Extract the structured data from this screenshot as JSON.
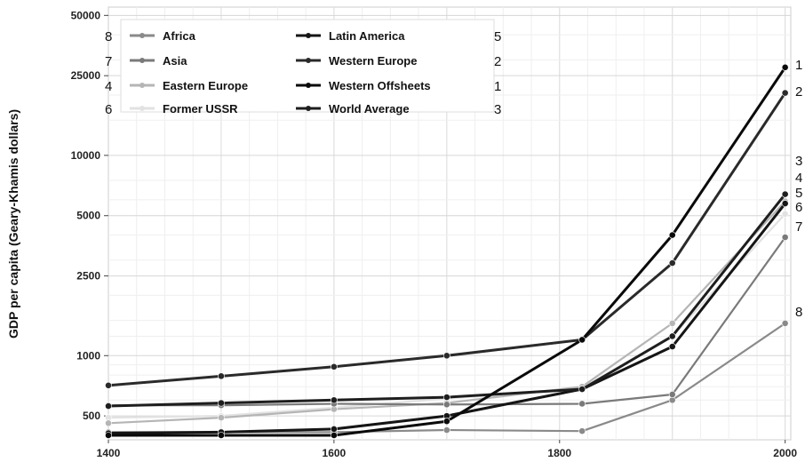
{
  "chart_data": {
    "type": "line",
    "title": "",
    "xlabel": "",
    "ylabel": "GDP per capita (Geary-Khamis dollars)",
    "y_scale": "log",
    "xlim": [
      1400,
      2005
    ],
    "ylim": [
      380,
      55000
    ],
    "x_ticks": [
      "1400",
      "1600",
      "1800",
      "2000"
    ],
    "y_ticks": [
      "500",
      "1000",
      "2500",
      "5000",
      "10000",
      "25000",
      "50000"
    ],
    "grid": true,
    "legend_position": "top-left",
    "series": [
      {
        "name": "Africa",
        "rank": "8",
        "color": "#8a8a8a",
        "x": [
          1400,
          1500,
          1600,
          1700,
          1820,
          1900,
          2000
        ],
        "y": [
          415,
          415,
          415,
          425,
          420,
          600,
          1450
        ]
      },
      {
        "name": "Asia",
        "rank": "7",
        "color": "#7a7a7a",
        "x": [
          1400,
          1500,
          1600,
          1700,
          1820,
          1900,
          2000
        ],
        "y": [
          565,
          565,
          575,
          570,
          575,
          640,
          3900
        ]
      },
      {
        "name": "Eastern Europe",
        "rank": "4",
        "color": "#b5b5b5",
        "x": [
          1400,
          1500,
          1600,
          1700,
          1820,
          1900,
          2000
        ],
        "y": [
          460,
          490,
          540,
          580,
          700,
          1450,
          5900
        ]
      },
      {
        "name": "Former USSR",
        "rank": "6",
        "color": "#e2e2e2",
        "x": [
          1400,
          1500,
          1600,
          1700,
          1820,
          1900,
          2000
        ],
        "y": [
          490,
          500,
          550,
          610,
          690,
          1250,
          5100
        ]
      },
      {
        "name": "Latin America",
        "rank": "5",
        "color": "#151515",
        "x": [
          1400,
          1500,
          1600,
          1700,
          1820,
          1900,
          2000
        ],
        "y": [
          410,
          415,
          430,
          500,
          680,
          1110,
          5750
        ]
      },
      {
        "name": "Western Europe",
        "rank": "2",
        "color": "#2a2a2a",
        "x": [
          1400,
          1500,
          1600,
          1700,
          1820,
          1900,
          2000
        ],
        "y": [
          710,
          790,
          880,
          1000,
          1200,
          2900,
          20500
        ]
      },
      {
        "name": "Western Offsheets",
        "rank": "1",
        "color": "#0a0a0a",
        "x": [
          1400,
          1500,
          1600,
          1700,
          1820,
          1900,
          2000
        ],
        "y": [
          400,
          400,
          400,
          470,
          1200,
          4000,
          27500
        ]
      },
      {
        "name": "World Average",
        "rank": "3",
        "color": "#1e1e1e",
        "x": [
          1400,
          1500,
          1600,
          1700,
          1820,
          1900,
          2000
        ],
        "y": [
          560,
          580,
          600,
          620,
          680,
          1250,
          6400
        ]
      }
    ],
    "legend_ranks_left": [
      "8",
      "7",
      "4",
      "6"
    ],
    "legend_ranks_right": [
      "5",
      "2",
      "1",
      "3"
    ],
    "end_rank_labels": [
      "1",
      "2",
      "3",
      "4",
      "5",
      "6",
      "7",
      "8"
    ]
  }
}
